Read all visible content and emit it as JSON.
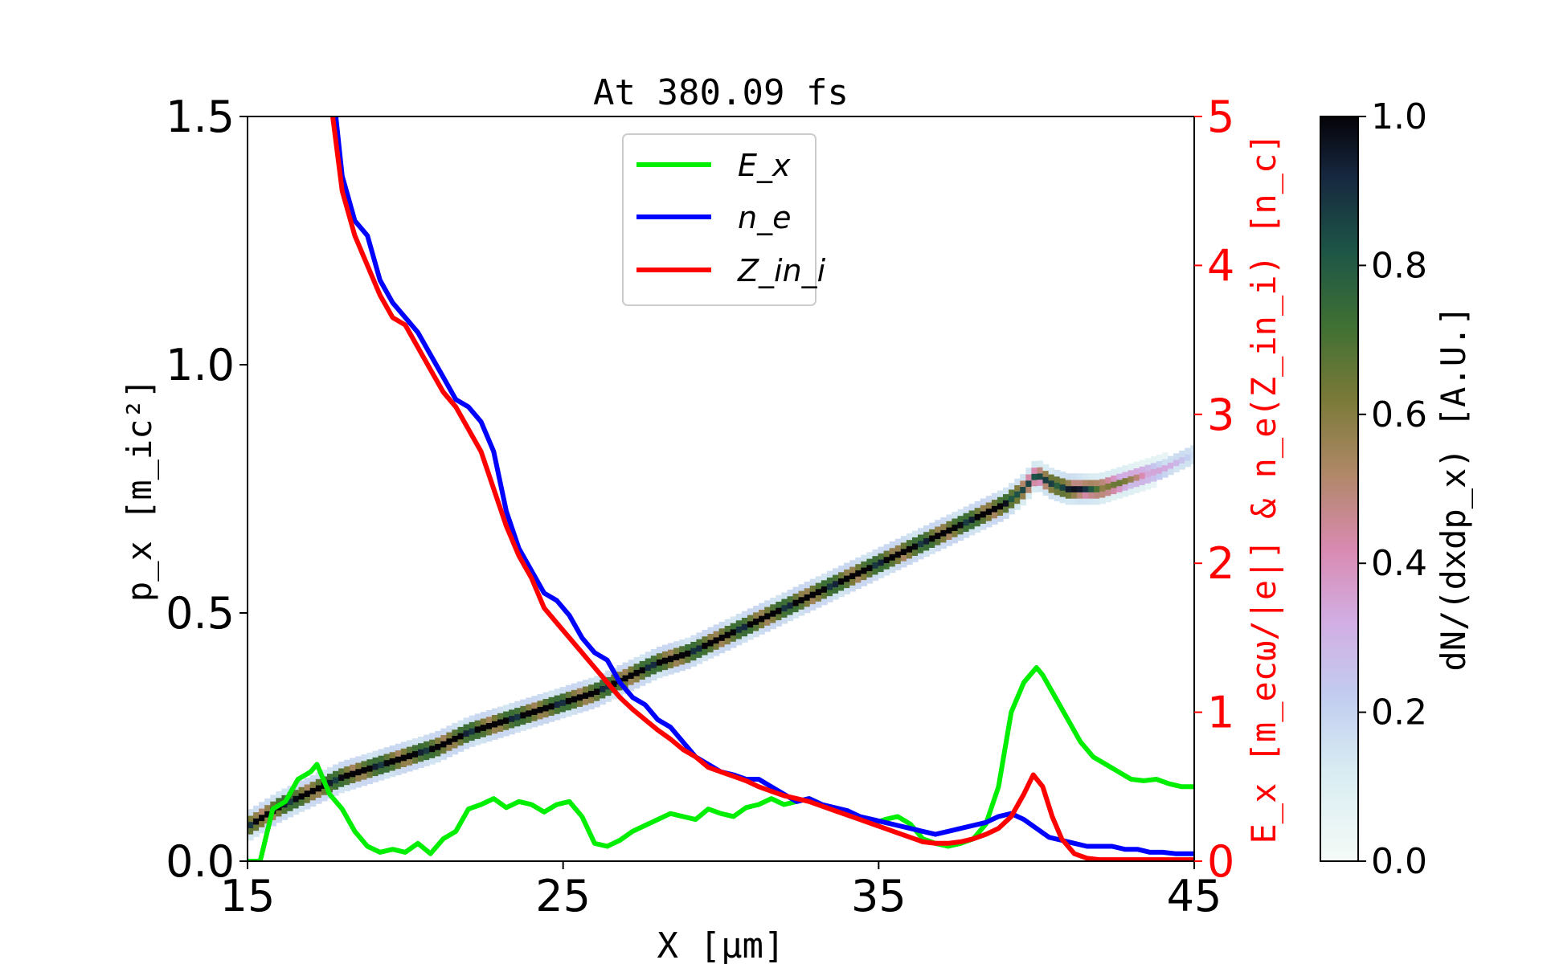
{
  "chart_data": {
    "type": "line",
    "title": "At 380.09 fs",
    "xlabel": "X [μm]",
    "ylabel": "p_x [m_ic²]",
    "ylabel_right": "E_x [m_ecω/|e|] & n_e(Z_in_i) [n_c]",
    "colorbar_label": "dN/(dxdp_x) [A.U.]",
    "xlim": [
      15,
      45
    ],
    "ylim": [
      0,
      1.5
    ],
    "ylim_right": [
      0,
      5
    ],
    "colorbar_lim": [
      0,
      1
    ],
    "x_ticks": [
      "15",
      "25",
      "35",
      "45"
    ],
    "y_ticks": [
      "0.0",
      "0.5",
      "1.0",
      "1.5"
    ],
    "y_right_ticks": [
      "0",
      "1",
      "2",
      "3",
      "4",
      "5"
    ],
    "colorbar_ticks": [
      "0.0",
      "0.2",
      "0.4",
      "0.6",
      "0.8",
      "1.0"
    ],
    "legend_position": "top-center",
    "colors": {
      "Ex": "#00ee00",
      "ne": "#0000ff",
      "Zini": "#ff0000",
      "right_axis": "#ff0000"
    },
    "series": [
      {
        "name": "E_x",
        "axis": "right",
        "x": [
          15.0,
          15.4,
          15.8,
          16.2,
          16.6,
          17.0,
          17.2,
          17.6,
          18.0,
          18.4,
          18.8,
          19.2,
          19.6,
          20.0,
          20.4,
          20.8,
          21.2,
          21.6,
          22.0,
          22.4,
          22.8,
          23.2,
          23.6,
          24.0,
          24.4,
          24.8,
          25.2,
          25.6,
          26.0,
          26.4,
          26.8,
          27.2,
          27.6,
          28.0,
          28.4,
          28.8,
          29.2,
          29.6,
          30.0,
          30.4,
          30.8,
          31.2,
          31.6,
          32.0,
          32.4,
          32.8,
          33.2,
          33.6,
          34.0,
          34.4,
          34.8,
          35.2,
          35.6,
          36.0,
          36.4,
          36.8,
          37.2,
          37.6,
          38.0,
          38.4,
          38.8,
          39.2,
          39.6,
          40.0,
          40.2,
          40.6,
          41.0,
          41.4,
          41.8,
          42.2,
          42.6,
          43.0,
          43.4,
          43.8,
          44.2,
          44.6,
          45.0
        ],
        "y": [
          0.0,
          0.0,
          0.35,
          0.4,
          0.55,
          0.6,
          0.65,
          0.45,
          0.35,
          0.2,
          0.1,
          0.06,
          0.08,
          0.06,
          0.12,
          0.05,
          0.15,
          0.2,
          0.35,
          0.38,
          0.42,
          0.36,
          0.4,
          0.38,
          0.33,
          0.38,
          0.4,
          0.3,
          0.12,
          0.1,
          0.14,
          0.2,
          0.24,
          0.28,
          0.32,
          0.3,
          0.28,
          0.35,
          0.32,
          0.3,
          0.36,
          0.38,
          0.42,
          0.38,
          0.4,
          0.42,
          0.38,
          0.35,
          0.32,
          0.3,
          0.25,
          0.28,
          0.3,
          0.25,
          0.15,
          0.12,
          0.1,
          0.12,
          0.15,
          0.25,
          0.5,
          1.0,
          1.2,
          1.3,
          1.25,
          1.1,
          0.95,
          0.8,
          0.7,
          0.65,
          0.6,
          0.55,
          0.54,
          0.55,
          0.52,
          0.5,
          0.5
        ]
      },
      {
        "name": "n_e",
        "axis": "right",
        "x": [
          17.8,
          18.0,
          18.2,
          18.4,
          18.8,
          19.2,
          19.6,
          20.0,
          20.4,
          20.8,
          21.2,
          21.6,
          22.0,
          22.4,
          22.8,
          23.2,
          23.6,
          24.0,
          24.4,
          24.8,
          25.2,
          25.6,
          26.0,
          26.4,
          26.8,
          27.2,
          27.6,
          28.0,
          28.4,
          28.8,
          29.2,
          29.6,
          30.0,
          30.4,
          30.8,
          31.2,
          31.6,
          32.0,
          32.4,
          32.8,
          33.2,
          33.6,
          34.0,
          34.4,
          34.8,
          35.2,
          35.6,
          36.0,
          36.4,
          36.8,
          37.2,
          37.6,
          38.0,
          38.4,
          38.8,
          39.2,
          39.6,
          40.0,
          40.4,
          40.8,
          41.2,
          41.6,
          42.0,
          42.4,
          42.8,
          43.2,
          43.6,
          44.0,
          44.4,
          44.8,
          45.0
        ],
        "y": [
          5.0,
          4.6,
          4.45,
          4.3,
          4.2,
          3.9,
          3.75,
          3.65,
          3.55,
          3.4,
          3.25,
          3.1,
          3.05,
          2.95,
          2.75,
          2.35,
          2.1,
          1.95,
          1.8,
          1.75,
          1.65,
          1.5,
          1.4,
          1.35,
          1.2,
          1.1,
          1.05,
          0.95,
          0.9,
          0.8,
          0.7,
          0.65,
          0.6,
          0.58,
          0.55,
          0.55,
          0.5,
          0.45,
          0.4,
          0.42,
          0.38,
          0.36,
          0.34,
          0.3,
          0.28,
          0.26,
          0.24,
          0.22,
          0.2,
          0.18,
          0.2,
          0.22,
          0.24,
          0.26,
          0.3,
          0.32,
          0.28,
          0.22,
          0.16,
          0.14,
          0.12,
          0.1,
          0.1,
          0.1,
          0.08,
          0.08,
          0.06,
          0.06,
          0.05,
          0.05,
          0.05
        ]
      },
      {
        "name": "Z_in_i",
        "axis": "right",
        "x": [
          17.7,
          18.0,
          18.4,
          18.8,
          19.2,
          19.6,
          20.0,
          20.4,
          20.8,
          21.2,
          21.6,
          22.0,
          22.4,
          22.8,
          23.2,
          23.6,
          24.0,
          24.4,
          24.8,
          25.2,
          25.6,
          26.0,
          26.4,
          26.8,
          27.2,
          27.6,
          28.0,
          28.4,
          28.8,
          29.2,
          29.6,
          30.0,
          30.4,
          30.8,
          31.2,
          31.6,
          32.0,
          32.4,
          32.8,
          33.2,
          33.6,
          34.0,
          34.4,
          34.8,
          35.2,
          35.6,
          36.0,
          36.4,
          36.8,
          37.2,
          37.6,
          38.0,
          38.4,
          38.8,
          39.2,
          39.6,
          39.9,
          40.2,
          40.5,
          40.8,
          41.2,
          41.6,
          42.0,
          42.4,
          42.8,
          43.2,
          43.6,
          44.0,
          44.4,
          44.8,
          45.0
        ],
        "y": [
          5.0,
          4.5,
          4.2,
          4.0,
          3.8,
          3.65,
          3.6,
          3.45,
          3.3,
          3.15,
          3.05,
          2.9,
          2.75,
          2.5,
          2.25,
          2.05,
          1.9,
          1.7,
          1.6,
          1.5,
          1.4,
          1.3,
          1.2,
          1.1,
          1.02,
          0.95,
          0.88,
          0.82,
          0.75,
          0.7,
          0.63,
          0.6,
          0.57,
          0.54,
          0.5,
          0.47,
          0.44,
          0.42,
          0.4,
          0.37,
          0.34,
          0.31,
          0.28,
          0.25,
          0.22,
          0.19,
          0.16,
          0.13,
          0.12,
          0.12,
          0.13,
          0.15,
          0.18,
          0.22,
          0.3,
          0.45,
          0.58,
          0.5,
          0.3,
          0.15,
          0.05,
          0.02,
          0.01,
          0.01,
          0.01,
          0.01,
          0.01,
          0.01,
          0.01,
          0.01,
          0.01
        ]
      },
      {
        "name": "",
        "type": "heatmap",
        "axis": "left",
        "x": [
          15.0,
          16.0,
          17.0,
          18.0,
          19.0,
          20.0,
          21.0,
          22.0,
          23.0,
          24.0,
          25.0,
          26.0,
          27.0,
          28.0,
          29.0,
          30.0,
          31.0,
          32.0,
          33.0,
          34.0,
          35.0,
          36.0,
          37.0,
          38.0,
          39.0,
          39.6,
          40.0,
          40.5,
          41.0,
          42.0,
          43.0,
          44.0,
          45.0
        ],
        "y": [
          0.07,
          0.11,
          0.14,
          0.17,
          0.19,
          0.21,
          0.23,
          0.26,
          0.28,
          0.3,
          0.32,
          0.34,
          0.37,
          0.4,
          0.42,
          0.45,
          0.48,
          0.51,
          0.54,
          0.57,
          0.6,
          0.63,
          0.66,
          0.69,
          0.72,
          0.75,
          0.78,
          0.76,
          0.75,
          0.75,
          0.77,
          0.79,
          0.82
        ],
        "intensity": [
          0.9,
          1.0,
          1.0,
          1.0,
          1.0,
          1.0,
          1.0,
          1.0,
          1.0,
          1.0,
          1.0,
          1.0,
          1.0,
          1.0,
          1.0,
          1.0,
          1.0,
          1.0,
          1.0,
          1.0,
          1.0,
          1.0,
          1.0,
          1.0,
          1.0,
          0.8,
          0.7,
          0.9,
          0.9,
          0.7,
          0.5,
          0.3,
          0.2
        ]
      }
    ]
  }
}
